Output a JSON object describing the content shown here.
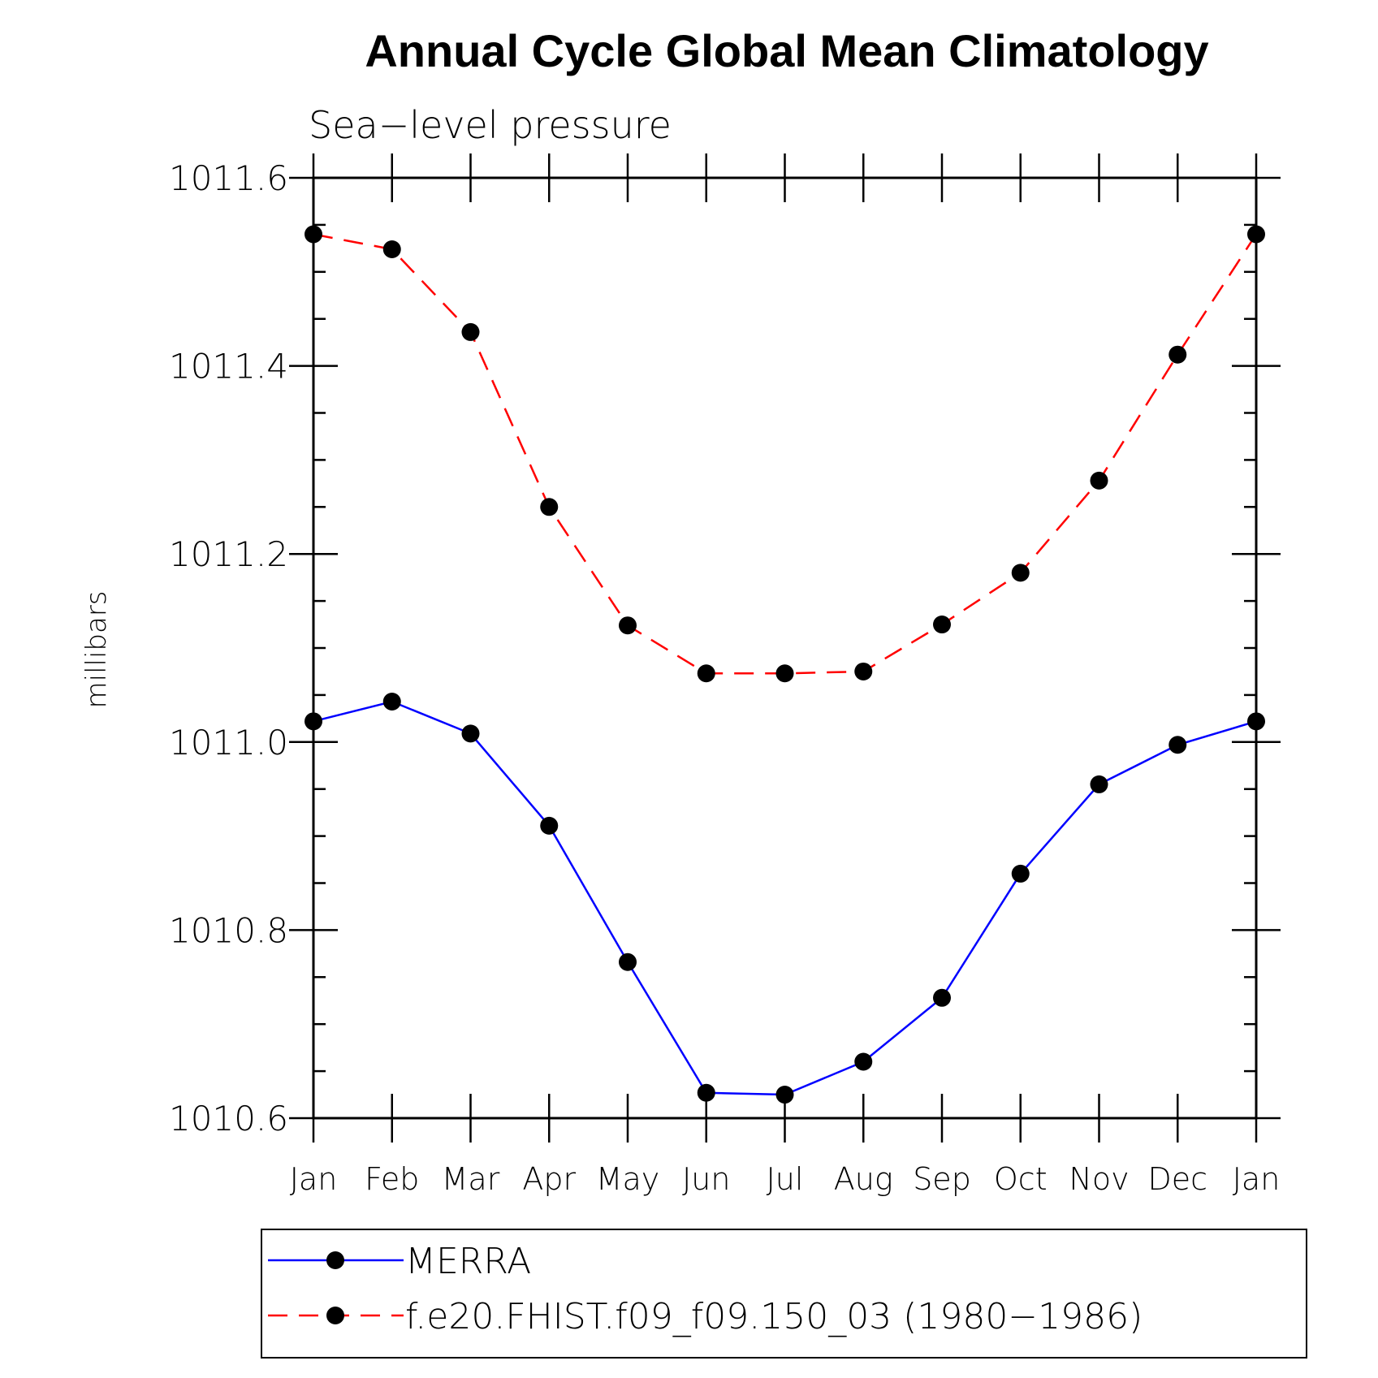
{
  "chart_data": {
    "type": "line",
    "title": "Annual Cycle Global Mean Climatology",
    "subtitle": "Sea−level pressure",
    "ylabel": "millibars",
    "xlabel": "",
    "categories": [
      "Jan",
      "Feb",
      "Mar",
      "Apr",
      "May",
      "Jun",
      "Jul",
      "Aug",
      "Sep",
      "Oct",
      "Nov",
      "Dec",
      "Jan"
    ],
    "ylim": [
      1010.6,
      1011.6
    ],
    "yticks": [
      "1010.6",
      "1010.8",
      "1011.0",
      "1011.2",
      "1011.4",
      "1011.6"
    ],
    "grid": false,
    "legend_position": "bottom",
    "series": [
      {
        "name": "MERRA",
        "color": "#0000ff",
        "line_style": "solid",
        "marker": "filled-circle",
        "values": [
          1011.022,
          1011.043,
          1011.009,
          1010.911,
          1010.766,
          1010.627,
          1010.625,
          1010.66,
          1010.728,
          1010.86,
          1010.955,
          1010.997,
          1011.022
        ]
      },
      {
        "name": "f.e20.FHIST.f09_f09.150_03 (1980−1986)",
        "color": "#ff0000",
        "line_style": "dashed",
        "marker": "filled-circle",
        "values": [
          1011.54,
          1011.524,
          1011.436,
          1011.25,
          1011.124,
          1011.073,
          1011.073,
          1011.075,
          1011.125,
          1011.18,
          1011.278,
          1011.412,
          1011.54
        ]
      }
    ]
  }
}
